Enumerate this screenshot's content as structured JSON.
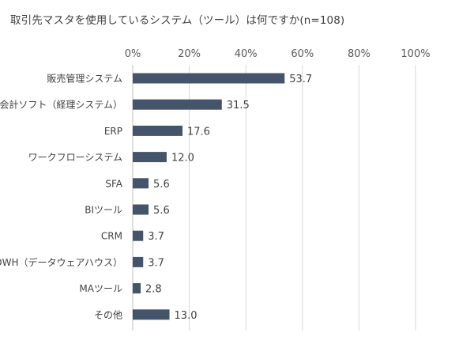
{
  "chart_data": {
    "type": "bar",
    "orientation": "horizontal",
    "title": "取引先マスタを使用しているシステム（ツール）は何ですか(n=108)",
    "categories": [
      "販売管理システム",
      "会計ソフト（経理システム）",
      "ERP",
      "ワークフローシステム",
      "SFA",
      "BIツール",
      "CRM",
      "DWH（データウェアハウス）",
      "MAツール",
      "その他"
    ],
    "values": [
      53.7,
      31.5,
      17.6,
      12.0,
      5.6,
      5.6,
      3.7,
      3.7,
      2.8,
      13.0
    ],
    "value_labels": [
      "53.7",
      "31.5",
      "17.6",
      "12.0",
      "5.6",
      "5.6",
      "3.7",
      "3.7",
      "2.8",
      "13.0"
    ],
    "xlim": [
      0,
      100
    ],
    "x_ticks": [
      0,
      20,
      40,
      60,
      80,
      100
    ],
    "x_tick_labels": [
      "0%",
      "20%",
      "40%",
      "60%",
      "80%",
      "100%"
    ],
    "tick_position": "top",
    "grid": true,
    "legend": "none",
    "bar_color": "#44546a"
  }
}
